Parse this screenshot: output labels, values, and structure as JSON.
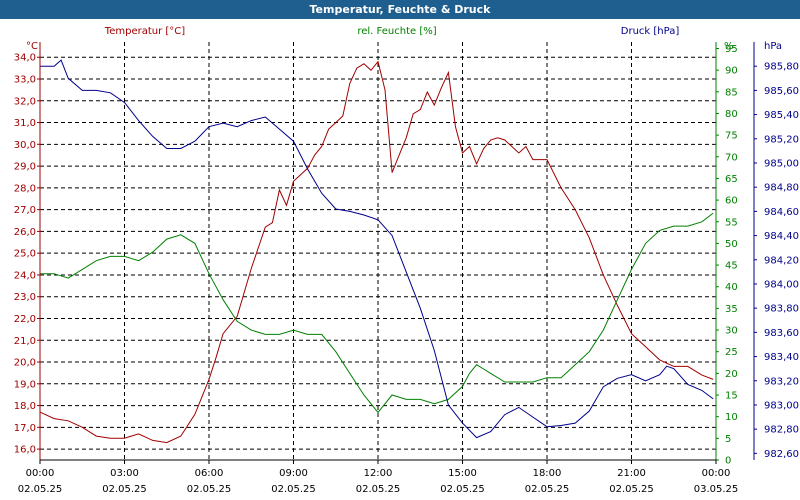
{
  "window": {
    "title": "Temperatur, Feuchte & Druck"
  },
  "colors": {
    "temperature": "#a00000",
    "humidity": "#008000",
    "pressure": "#00008b",
    "titlebar": "#1f5f8f",
    "grid": "#000000"
  },
  "chart_data": {
    "type": "line",
    "title": "Temperatur, Feuchte & Druck",
    "x_ticks": [
      {
        "time": "00:00",
        "date": "02.05.25"
      },
      {
        "time": "03:00",
        "date": "02.05.25"
      },
      {
        "time": "06:00",
        "date": "02.05.25"
      },
      {
        "time": "09:00",
        "date": "02.05.25"
      },
      {
        "time": "12:00",
        "date": "02.05.25"
      },
      {
        "time": "15:00",
        "date": "02.05.25"
      },
      {
        "time": "18:00",
        "date": "02.05.25"
      },
      {
        "time": "21:00",
        "date": "02.05.25"
      },
      {
        "time": "00:00",
        "date": "03.05.25"
      }
    ],
    "xlim_hours": [
      0,
      24
    ],
    "grid": true,
    "axes": {
      "left": {
        "unit": "°C",
        "ylim": [
          15.5,
          34.7
        ],
        "ticks": [
          16.0,
          17.0,
          18.0,
          19.0,
          20.0,
          21.0,
          22.0,
          23.0,
          24.0,
          25.0,
          26.0,
          27.0,
          28.0,
          29.0,
          30.0,
          31.0,
          32.0,
          33.0,
          34.0
        ],
        "decimals": 1
      },
      "right1": {
        "unit": "%",
        "ylim": [
          0,
          96.5
        ],
        "ticks": [
          0,
          5,
          10,
          15,
          20,
          25,
          30,
          35,
          40,
          45,
          50,
          55,
          60,
          65,
          70,
          75,
          80,
          85,
          90,
          95
        ],
        "decimals": 0
      },
      "right2": {
        "unit": "hPa",
        "ylim": [
          982.545,
          986.0
        ],
        "ticks": [
          982.6,
          982.8,
          983.0,
          983.2,
          983.4,
          983.6,
          983.8,
          984.0,
          984.2,
          984.4,
          984.6,
          984.8,
          985.0,
          985.2,
          985.4,
          985.6,
          985.8
        ],
        "decimals": 2
      }
    },
    "series": [
      {
        "name": "Temperatur [°C]",
        "axis": "left",
        "color": "#a00000",
        "x": [
          0,
          0.5,
          1,
          1.5,
          2,
          2.5,
          3,
          3.5,
          4,
          4.5,
          5,
          5.5,
          6,
          6.25,
          6.5,
          7,
          7.5,
          8,
          8.25,
          8.5,
          8.75,
          9,
          9.5,
          9.75,
          10,
          10.25,
          10.5,
          10.75,
          11,
          11.25,
          11.5,
          11.75,
          12,
          12.25,
          12.5,
          12.75,
          13,
          13.25,
          13.5,
          13.75,
          14,
          14.25,
          14.5,
          14.75,
          15,
          15.25,
          15.5,
          15.75,
          16,
          16.25,
          16.5,
          17,
          17.25,
          17.5,
          18,
          18.5,
          19,
          19.5,
          20,
          20.5,
          21,
          21.5,
          22,
          22.5,
          23,
          23.5,
          23.9
        ],
        "values": [
          17.7,
          17.4,
          17.3,
          17.0,
          16.6,
          16.5,
          16.5,
          16.7,
          16.4,
          16.3,
          16.6,
          17.6,
          19.2,
          20.2,
          21.3,
          22.1,
          24.3,
          26.2,
          26.4,
          27.9,
          27.2,
          28.3,
          28.9,
          29.5,
          29.9,
          30.7,
          31.0,
          31.3,
          32.8,
          33.5,
          33.7,
          33.4,
          33.8,
          32.5,
          28.7,
          29.5,
          30.3,
          31.4,
          31.6,
          32.4,
          31.8,
          32.6,
          33.3,
          30.8,
          29.6,
          29.9,
          29.1,
          29.8,
          30.2,
          30.3,
          30.2,
          29.6,
          29.9,
          29.3,
          29.3,
          28.0,
          27.0,
          25.7,
          24.0,
          22.6,
          21.3,
          20.7,
          20.1,
          19.8,
          19.8,
          19.4,
          19.2
        ]
      },
      {
        "name": "rel. Feuchte [%]",
        "axis": "right1",
        "color": "#008000",
        "x": [
          0,
          0.5,
          1,
          1.5,
          2,
          2.5,
          3,
          3.5,
          4,
          4.5,
          5,
          5.5,
          6,
          6.5,
          7,
          7.5,
          8,
          8.5,
          9,
          9.5,
          10,
          10.5,
          11,
          11.5,
          12,
          12.5,
          13,
          13.5,
          14,
          14.5,
          15,
          15.25,
          15.5,
          15.75,
          16,
          16.5,
          17,
          17.5,
          18,
          18.5,
          19,
          19.5,
          20,
          20.5,
          21,
          21.5,
          22,
          22.5,
          23,
          23.5,
          23.9
        ],
        "values": [
          43,
          43,
          42,
          44,
          46,
          47,
          47,
          46,
          48,
          51,
          52,
          50,
          43,
          37,
          32,
          30,
          29,
          29,
          30,
          29,
          29,
          25,
          20,
          15,
          11,
          15,
          14,
          14,
          13,
          14,
          17,
          20,
          22,
          21,
          20,
          18,
          18,
          18,
          19,
          19,
          22,
          25,
          30,
          37,
          44,
          50,
          53,
          54,
          54,
          55,
          57
        ]
      },
      {
        "name": "Druck [hPa]",
        "axis": "right2",
        "color": "#00008b",
        "x": [
          0,
          0.5,
          0.75,
          1,
          1.5,
          2,
          2.5,
          3,
          3.5,
          4,
          4.5,
          5,
          5.5,
          6,
          6.5,
          7,
          7.5,
          8,
          8.5,
          9,
          9.5,
          10,
          10.5,
          11,
          11.5,
          12,
          12.5,
          13,
          13.5,
          14,
          14.5,
          15,
          15.5,
          16,
          16.5,
          17,
          17.5,
          18,
          18.5,
          19,
          19.5,
          20,
          20.5,
          21,
          21.5,
          22,
          22.25,
          22.5,
          23,
          23.5,
          23.9
        ],
        "values": [
          985.8,
          985.8,
          985.85,
          985.7,
          985.6,
          985.6,
          985.58,
          985.5,
          985.35,
          985.22,
          985.12,
          985.12,
          985.18,
          985.3,
          985.33,
          985.3,
          985.35,
          985.38,
          985.28,
          985.18,
          984.95,
          984.75,
          984.62,
          984.6,
          984.57,
          984.53,
          984.4,
          984.1,
          983.8,
          983.45,
          983.0,
          982.85,
          982.73,
          982.78,
          982.92,
          982.98,
          982.9,
          982.82,
          982.83,
          982.85,
          982.95,
          983.15,
          983.22,
          983.25,
          983.2,
          983.25,
          983.32,
          983.3,
          983.17,
          983.12,
          983.05
        ]
      }
    ]
  }
}
